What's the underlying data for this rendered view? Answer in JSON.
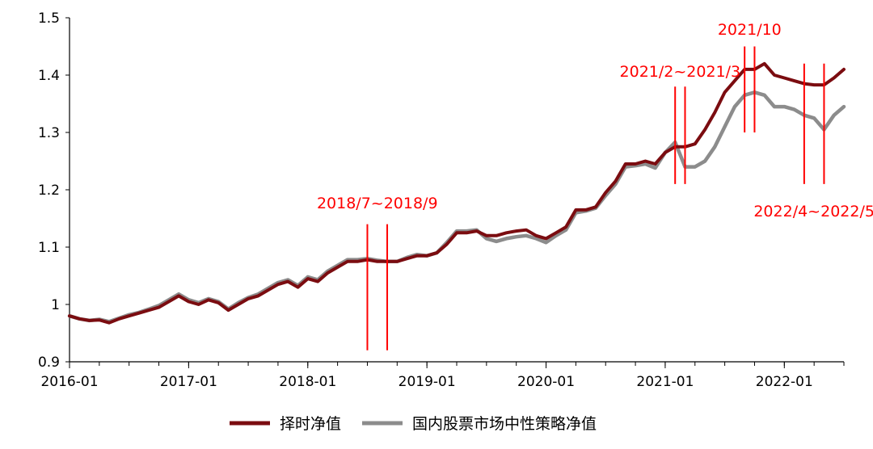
{
  "chart_data": {
    "type": "line",
    "title": "",
    "xlabel": "",
    "ylabel": "",
    "x_range": [
      "2016-01",
      "2022-07"
    ],
    "ylim": [
      0.9,
      1.5
    ],
    "y_ticks": [
      0.9,
      1,
      1.1,
      1.2,
      1.3,
      1.4,
      1.5
    ],
    "y_tick_labels": [
      "0.9",
      "1",
      "1.1",
      "1.2",
      "1.3",
      "1.4",
      "1.5"
    ],
    "x_ticks": [
      "2016-01",
      "2017-01",
      "2018-01",
      "2019-01",
      "2020-01",
      "2021-01",
      "2022-01"
    ],
    "x_tick_labels": [
      "2016-01",
      "2017-01",
      "2018-01",
      "2019-01",
      "2020-01",
      "2021-01",
      "2022-01"
    ],
    "legend_position": "bottom",
    "grid": false,
    "series": [
      {
        "name": "择时净值",
        "color": "#7b0c10",
        "points": [
          [
            "2016-01",
            0.98
          ],
          [
            "2016-02",
            0.975
          ],
          [
            "2016-03",
            0.972
          ],
          [
            "2016-04",
            0.973
          ],
          [
            "2016-05",
            0.968
          ],
          [
            "2016-06",
            0.975
          ],
          [
            "2016-07",
            0.98
          ],
          [
            "2016-08",
            0.985
          ],
          [
            "2016-09",
            0.99
          ],
          [
            "2016-10",
            0.995
          ],
          [
            "2016-11",
            1.005
          ],
          [
            "2016-12",
            1.015
          ],
          [
            "2017-01",
            1.005
          ],
          [
            "2017-02",
            1.0
          ],
          [
            "2017-03",
            1.008
          ],
          [
            "2017-04",
            1.003
          ],
          [
            "2017-05",
            0.99
          ],
          [
            "2017-06",
            1.0
          ],
          [
            "2017-07",
            1.01
          ],
          [
            "2017-08",
            1.015
          ],
          [
            "2017-09",
            1.025
          ],
          [
            "2017-10",
            1.035
          ],
          [
            "2017-11",
            1.04
          ],
          [
            "2017-12",
            1.03
          ],
          [
            "2018-01",
            1.045
          ],
          [
            "2018-02",
            1.04
          ],
          [
            "2018-03",
            1.055
          ],
          [
            "2018-04",
            1.065
          ],
          [
            "2018-05",
            1.075
          ],
          [
            "2018-06",
            1.075
          ],
          [
            "2018-07",
            1.078
          ],
          [
            "2018-08",
            1.075
          ],
          [
            "2018-09",
            1.075
          ],
          [
            "2018-10",
            1.075
          ],
          [
            "2018-11",
            1.08
          ],
          [
            "2018-12",
            1.085
          ],
          [
            "2019-01",
            1.085
          ],
          [
            "2019-02",
            1.09
          ],
          [
            "2019-03",
            1.105
          ],
          [
            "2019-04",
            1.125
          ],
          [
            "2019-05",
            1.125
          ],
          [
            "2019-06",
            1.128
          ],
          [
            "2019-07",
            1.12
          ],
          [
            "2019-08",
            1.12
          ],
          [
            "2019-09",
            1.125
          ],
          [
            "2019-10",
            1.128
          ],
          [
            "2019-11",
            1.13
          ],
          [
            "2019-12",
            1.12
          ],
          [
            "2020-01",
            1.115
          ],
          [
            "2020-02",
            1.125
          ],
          [
            "2020-03",
            1.135
          ],
          [
            "2020-04",
            1.165
          ],
          [
            "2020-05",
            1.165
          ],
          [
            "2020-06",
            1.17
          ],
          [
            "2020-07",
            1.195
          ],
          [
            "2020-08",
            1.215
          ],
          [
            "2020-09",
            1.245
          ],
          [
            "2020-10",
            1.245
          ],
          [
            "2020-11",
            1.25
          ],
          [
            "2020-12",
            1.245
          ],
          [
            "2021-01",
            1.265
          ],
          [
            "2021-02",
            1.275
          ],
          [
            "2021-03",
            1.275
          ],
          [
            "2021-04",
            1.28
          ],
          [
            "2021-05",
            1.305
          ],
          [
            "2021-06",
            1.335
          ],
          [
            "2021-07",
            1.37
          ],
          [
            "2021-08",
            1.39
          ],
          [
            "2021-09",
            1.41
          ],
          [
            "2021-10",
            1.41
          ],
          [
            "2021-11",
            1.42
          ],
          [
            "2021-12",
            1.4
          ],
          [
            "2022-01",
            1.395
          ],
          [
            "2022-02",
            1.39
          ],
          [
            "2022-03",
            1.385
          ],
          [
            "2022-04",
            1.383
          ],
          [
            "2022-05",
            1.383
          ],
          [
            "2022-06",
            1.395
          ],
          [
            "2022-07",
            1.41
          ]
        ]
      },
      {
        "name": "国内股票市场中性策略净值",
        "color": "#8c8c8c",
        "points": [
          [
            "2016-01",
            0.98
          ],
          [
            "2016-02",
            0.975
          ],
          [
            "2016-03",
            0.972
          ],
          [
            "2016-04",
            0.974
          ],
          [
            "2016-05",
            0.97
          ],
          [
            "2016-06",
            0.976
          ],
          [
            "2016-07",
            0.982
          ],
          [
            "2016-08",
            0.986
          ],
          [
            "2016-09",
            0.992
          ],
          [
            "2016-10",
            0.998
          ],
          [
            "2016-11",
            1.008
          ],
          [
            "2016-12",
            1.018
          ],
          [
            "2017-01",
            1.008
          ],
          [
            "2017-02",
            1.003
          ],
          [
            "2017-03",
            1.01
          ],
          [
            "2017-04",
            1.005
          ],
          [
            "2017-05",
            0.992
          ],
          [
            "2017-06",
            1.003
          ],
          [
            "2017-07",
            1.012
          ],
          [
            "2017-08",
            1.018
          ],
          [
            "2017-09",
            1.028
          ],
          [
            "2017-10",
            1.038
          ],
          [
            "2017-11",
            1.043
          ],
          [
            "2017-12",
            1.033
          ],
          [
            "2018-01",
            1.048
          ],
          [
            "2018-02",
            1.043
          ],
          [
            "2018-03",
            1.058
          ],
          [
            "2018-04",
            1.068
          ],
          [
            "2018-05",
            1.078
          ],
          [
            "2018-06",
            1.078
          ],
          [
            "2018-07",
            1.08
          ],
          [
            "2018-08",
            1.077
          ],
          [
            "2018-09",
            1.075
          ],
          [
            "2018-10",
            1.075
          ],
          [
            "2018-11",
            1.082
          ],
          [
            "2018-12",
            1.087
          ],
          [
            "2019-01",
            1.085
          ],
          [
            "2019-02",
            1.09
          ],
          [
            "2019-03",
            1.108
          ],
          [
            "2019-04",
            1.128
          ],
          [
            "2019-05",
            1.128
          ],
          [
            "2019-06",
            1.13
          ],
          [
            "2019-07",
            1.115
          ],
          [
            "2019-08",
            1.11
          ],
          [
            "2019-09",
            1.115
          ],
          [
            "2019-10",
            1.118
          ],
          [
            "2019-11",
            1.12
          ],
          [
            "2019-12",
            1.115
          ],
          [
            "2020-01",
            1.108
          ],
          [
            "2020-02",
            1.12
          ],
          [
            "2020-03",
            1.13
          ],
          [
            "2020-04",
            1.16
          ],
          [
            "2020-05",
            1.163
          ],
          [
            "2020-06",
            1.168
          ],
          [
            "2020-07",
            1.19
          ],
          [
            "2020-08",
            1.21
          ],
          [
            "2020-09",
            1.24
          ],
          [
            "2020-10",
            1.242
          ],
          [
            "2020-11",
            1.245
          ],
          [
            "2020-12",
            1.238
          ],
          [
            "2021-01",
            1.265
          ],
          [
            "2021-02",
            1.283
          ],
          [
            "2021-03",
            1.24
          ],
          [
            "2021-04",
            1.24
          ],
          [
            "2021-05",
            1.25
          ],
          [
            "2021-06",
            1.275
          ],
          [
            "2021-07",
            1.31
          ],
          [
            "2021-08",
            1.345
          ],
          [
            "2021-09",
            1.365
          ],
          [
            "2021-10",
            1.37
          ],
          [
            "2021-11",
            1.365
          ],
          [
            "2021-12",
            1.345
          ],
          [
            "2022-01",
            1.345
          ],
          [
            "2022-02",
            1.34
          ],
          [
            "2022-03",
            1.33
          ],
          [
            "2022-04",
            1.325
          ],
          [
            "2022-05",
            1.305
          ],
          [
            "2022-06",
            1.33
          ],
          [
            "2022-07",
            1.345
          ]
        ]
      }
    ],
    "annotations": [
      {
        "label": "2018/7~2018/9",
        "color": "#ff0000",
        "line_dates": [
          "2018-07",
          "2018-09"
        ],
        "line_y": [
          0.92,
          1.14
        ]
      },
      {
        "label": "2021/2~2021/3",
        "color": "#ff0000",
        "line_dates": [
          "2021-02",
          "2021-03"
        ],
        "line_y": [
          1.21,
          1.38
        ]
      },
      {
        "label": "2021/10",
        "color": "#ff0000",
        "line_dates": [
          "2021-09",
          "2021-10"
        ],
        "line_y": [
          1.3,
          1.45
        ]
      },
      {
        "label": "2022/4~2022/5",
        "color": "#ff0000",
        "line_dates": [
          "2022-03",
          "2022-05"
        ],
        "line_y": [
          1.21,
          1.42
        ]
      }
    ]
  }
}
